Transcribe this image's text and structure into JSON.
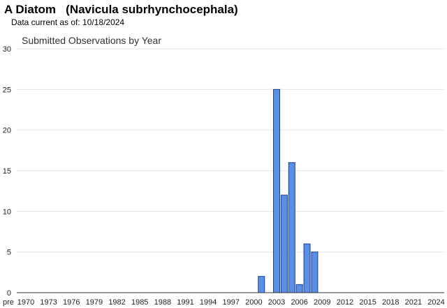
{
  "header": {
    "title": "A Diatom   (Navicula subrhynchocephala)",
    "data_current": "Data current as of: 10/18/2024"
  },
  "colors": {
    "bar_fill": "#5b8fe6",
    "bar_stroke": "#1a3d8f",
    "grid": "#e4e4e4"
  },
  "chart_data": {
    "type": "bar",
    "title": "Submitted Observations by Year",
    "xlabel": "",
    "ylabel": "",
    "ylim": [
      0,
      30
    ],
    "yticks": [
      0,
      5,
      10,
      15,
      20,
      25,
      30
    ],
    "grid": true,
    "legend": "none",
    "categories": [
      "pre 1970",
      "1970",
      "1971",
      "1972",
      "1973",
      "1974",
      "1975",
      "1976",
      "1977",
      "1978",
      "1979",
      "1980",
      "1981",
      "1982",
      "1983",
      "1984",
      "1985",
      "1986",
      "1987",
      "1988",
      "1989",
      "1990",
      "1991",
      "1992",
      "1993",
      "1994",
      "1995",
      "1996",
      "1997",
      "1998",
      "1999",
      "2000",
      "2001",
      "2002",
      "2003",
      "2004",
      "2005",
      "2006",
      "2007",
      "2008",
      "2009",
      "2010",
      "2011",
      "2012",
      "2013",
      "2014",
      "2015",
      "2016",
      "2017",
      "2018",
      "2019",
      "2020",
      "2021",
      "2022",
      "2023",
      "2024"
    ],
    "values": [
      0,
      0,
      0,
      0,
      0,
      0,
      0,
      0,
      0,
      0,
      0,
      0,
      0,
      0,
      0,
      0,
      0,
      0,
      0,
      0,
      0,
      0,
      0,
      0,
      0,
      0,
      0,
      0,
      0,
      0,
      0,
      0,
      2,
      0,
      25,
      12,
      16,
      1,
      6,
      5,
      0,
      0,
      0,
      0,
      0,
      0,
      0,
      0,
      0,
      0,
      0,
      0,
      0,
      0,
      0,
      0
    ],
    "tick_labels": [
      "pre",
      "1970",
      "1973",
      "1976",
      "1979",
      "1982",
      "1985",
      "1988",
      "1991",
      "1994",
      "1997",
      "2000",
      "2003",
      "2006",
      "2009",
      "2012",
      "2015",
      "2018",
      "2021",
      "2024"
    ]
  }
}
